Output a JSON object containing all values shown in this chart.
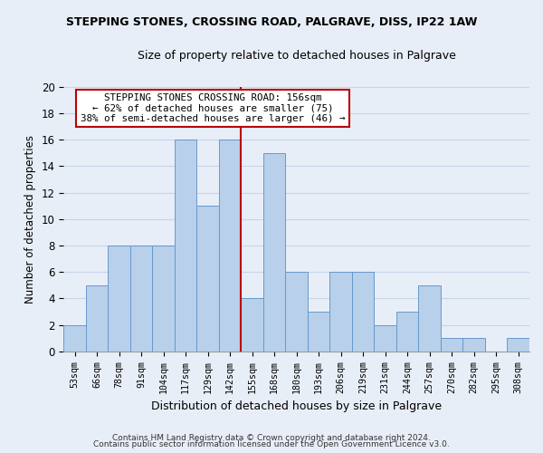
{
  "title1": "STEPPING STONES, CROSSING ROAD, PALGRAVE, DISS, IP22 1AW",
  "title2": "Size of property relative to detached houses in Palgrave",
  "xlabel": "Distribution of detached houses by size in Palgrave",
  "ylabel": "Number of detached properties",
  "footnote1": "Contains HM Land Registry data © Crown copyright and database right 2024.",
  "footnote2": "Contains public sector information licensed under the Open Government Licence v3.0.",
  "bin_labels": [
    "53sqm",
    "66sqm",
    "78sqm",
    "91sqm",
    "104sqm",
    "117sqm",
    "129sqm",
    "142sqm",
    "155sqm",
    "168sqm",
    "180sqm",
    "193sqm",
    "206sqm",
    "219sqm",
    "231sqm",
    "244sqm",
    "257sqm",
    "270sqm",
    "282sqm",
    "295sqm",
    "308sqm"
  ],
  "bar_values": [
    2,
    5,
    8,
    8,
    8,
    16,
    11,
    16,
    4,
    15,
    6,
    3,
    6,
    6,
    2,
    3,
    5,
    1,
    1,
    0,
    1
  ],
  "bar_color": "#b8d0ea",
  "bar_edge_color": "#6699cc",
  "vline_index": 8,
  "vline_color": "#bb0000",
  "annotation_line1": "STEPPING STONES CROSSING ROAD: 156sqm",
  "annotation_line2": "← 62% of detached houses are smaller (75)",
  "annotation_line3": "38% of semi-detached houses are larger (46) →",
  "annotation_box_color": "#bb0000",
  "ylim": [
    0,
    20
  ],
  "yticks": [
    0,
    2,
    4,
    6,
    8,
    10,
    12,
    14,
    16,
    18,
    20
  ],
  "grid_color": "#c8d4e8",
  "background_color": "#e8eef8",
  "plot_background": "#e8eef8"
}
